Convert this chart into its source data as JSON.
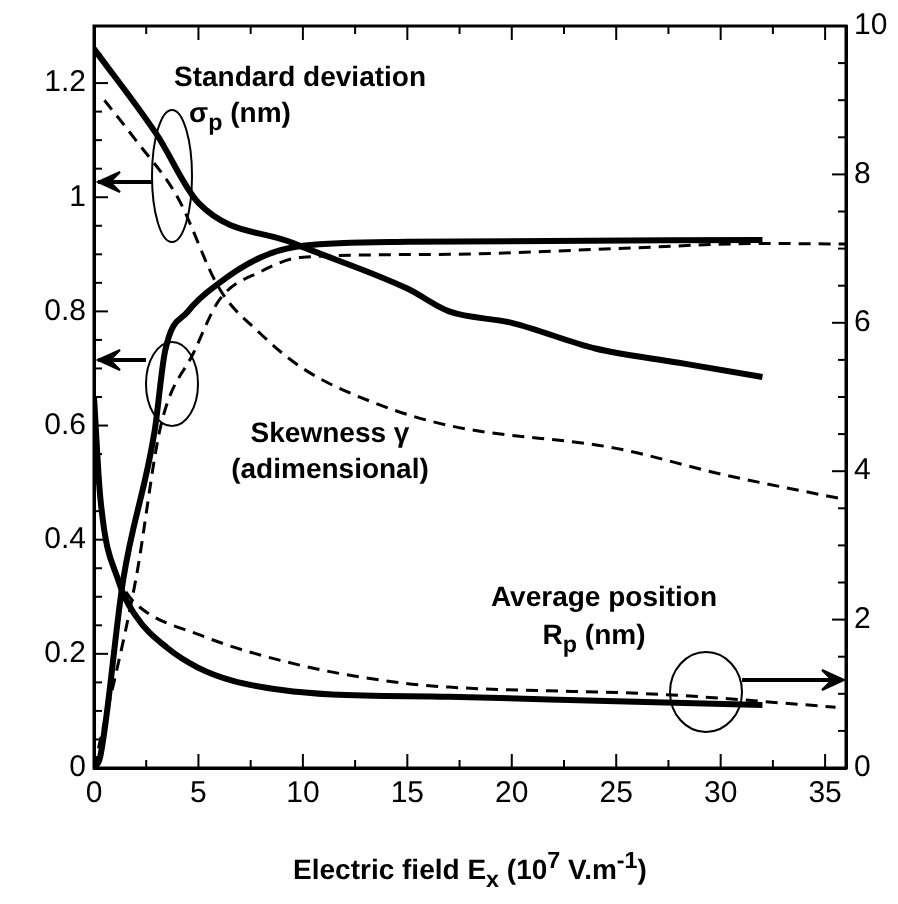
{
  "chart_data": {
    "type": "line",
    "xlabel": "Electric field  E$_{x}$  (10$^{7}$ V.m$^{-1}$)",
    "xlim": [
      0,
      36
    ],
    "xticks": [
      0,
      {
        "value": 2.5,
        "label": null
      },
      5,
      {
        "value": 7.5,
        "label": null
      },
      10,
      {
        "value": 12.5,
        "label": null
      },
      15,
      {
        "value": 17.5,
        "label": null
      },
      20,
      {
        "value": 22.5,
        "label": null
      },
      25,
      {
        "value": 27.5,
        "label": null
      },
      30,
      {
        "value": 32.5,
        "label": null
      },
      35
    ],
    "ylim": [
      0,
      1.3
    ],
    "yticks": [
      0,
      {
        "value": 0.05,
        "label": null
      },
      {
        "value": 0.1,
        "label": null
      },
      {
        "value": 0.15,
        "label": null
      },
      0.2,
      {
        "value": 0.25,
        "label": null
      },
      {
        "value": 0.3,
        "label": null
      },
      {
        "value": 0.35,
        "label": null
      },
      0.4,
      {
        "value": 0.45,
        "label": null
      },
      {
        "value": 0.5,
        "label": null
      },
      {
        "value": 0.55,
        "label": null
      },
      0.6,
      {
        "value": 0.65,
        "label": null
      },
      {
        "value": 0.7,
        "label": null
      },
      {
        "value": 0.75,
        "label": null
      },
      0.8,
      {
        "value": 0.85,
        "label": null
      },
      {
        "value": 0.9,
        "label": null
      },
      {
        "value": 0.95,
        "label": null
      },
      1,
      {
        "value": 1.05,
        "label": null
      },
      {
        "value": 1.1,
        "label": null
      },
      {
        "value": 1.15,
        "label": null
      },
      1.2,
      {
        "value": 1.25,
        "label": null
      }
    ],
    "y2lim": [
      0,
      10
    ],
    "y2ticks": [
      0,
      {
        "value": 0.5,
        "label": null
      },
      {
        "value": 1,
        "label": null
      },
      {
        "value": 1.5,
        "label": null
      },
      2,
      {
        "value": 2.5,
        "label": null
      },
      {
        "value": 3,
        "label": null
      },
      {
        "value": 3.5,
        "label": null
      },
      4,
      {
        "value": 4.5,
        "label": null
      },
      {
        "value": 5,
        "label": null
      },
      {
        "value": 5.5,
        "label": null
      },
      6,
      {
        "value": 6.5,
        "label": null
      },
      {
        "value": 7,
        "label": null
      },
      {
        "value": 7.5,
        "label": null
      },
      8,
      {
        "value": 8.5,
        "label": null
      },
      {
        "value": 9,
        "label": null
      },
      {
        "value": 9.5,
        "label": null
      },
      10
    ],
    "grid": false,
    "legend": false,
    "marker": "none",
    "annotations": [
      "Standard deviation",
      "σ$_{p}$ (nm)",
      "Skewness  γ",
      "(adimensional)",
      "Average position",
      "R$_{p}$  (nm)"
    ],
    "series": [
      {
        "color": "#000000",
        "line_style": "solid",
        "x": [
          0,
          3,
          5,
          9.5,
          15,
          17,
          20,
          24,
          28,
          32
        ],
        "values": [
          1.26,
          1.11,
          0.99,
          0.92,
          0.84,
          0.8,
          0.78,
          0.735,
          0.71,
          0.685
        ]
      },
      {
        "color": "#000000",
        "line_style": "dashed",
        "x": [
          0.5,
          2,
          4,
          6,
          8,
          10,
          13.4,
          17,
          25,
          30,
          36
        ],
        "values": [
          1.17,
          1.1,
          1.0,
          0.84,
          0.76,
          0.7,
          0.64,
          0.6,
          0.56,
          0.515,
          0.47
        ]
      },
      {
        "color": "#000000",
        "line_style": "solid",
        "x": [
          0,
          0.3,
          1.4,
          2.9,
          3.4,
          4.5,
          6,
          8,
          10,
          15,
          32
        ],
        "values": [
          0,
          0.02,
          0.33,
          0.59,
          0.73,
          0.8,
          0.85,
          0.895,
          0.915,
          0.922,
          0.925
        ]
      },
      {
        "color": "#000000",
        "line_style": "dashed",
        "x": [
          0,
          2,
          3.2,
          4.8,
          6,
          8,
          10,
          17,
          25,
          32,
          36
        ],
        "values": [
          0,
          0.33,
          0.6,
          0.73,
          0.82,
          0.87,
          0.895,
          0.9,
          0.91,
          0.919,
          0.918
        ]
      },
      {
        "color": "#000000",
        "line_style": "solid",
        "axis": "y2",
        "x": [
          0,
          0.3,
          1.2,
          2,
          3.5,
          5,
          6.7,
          9,
          11.4,
          17,
          25,
          32
        ],
        "values": [
          5.0,
          3.65,
          2.5,
          2.05,
          1.62,
          1.35,
          1.17,
          1.05,
          0.99,
          0.96,
          0.9,
          0.85
        ]
      },
      {
        "color": "#000000",
        "line_style": "dashed",
        "axis": "y2",
        "x": [
          1,
          1.9,
          5.1,
          9.8,
          14.6,
          17,
          27.3,
          35.5
        ],
        "values": [
          2.6,
          2.24,
          1.79,
          1.39,
          1.15,
          1.09,
          0.99,
          0.82
        ]
      }
    ]
  }
}
